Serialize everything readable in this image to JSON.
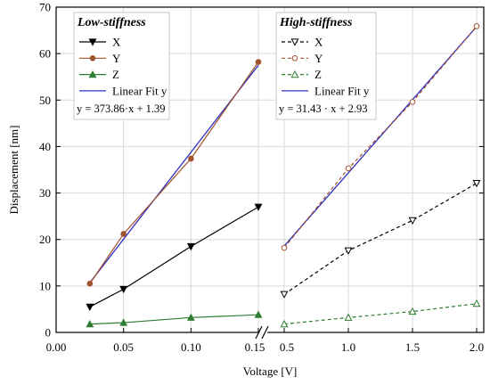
{
  "chart_data": {
    "type": "line",
    "ylabel": "Displacement [nm]",
    "xlabel": "Voltage [V]",
    "ylim": [
      0,
      70
    ],
    "yticks": [
      "0",
      "10",
      "20",
      "30",
      "40",
      "50",
      "60",
      "70"
    ],
    "yticks_values": [
      0,
      10,
      20,
      30,
      40,
      50,
      60,
      70
    ],
    "panels": [
      {
        "title": "Low-stiffness",
        "xlim": [
          0.0,
          0.15
        ],
        "xticks": [
          "0.00",
          "0.05",
          "0.10",
          "0.15"
        ],
        "xticks_values": [
          0.0,
          0.05,
          0.1,
          0.15
        ],
        "x": [
          0.025,
          0.05,
          0.1,
          0.15
        ],
        "series": [
          {
            "name": "X",
            "values": [
              5.5,
              9.3,
              18.5,
              27.0
            ],
            "color": "#000000",
            "marker": "triangle-down",
            "dash": "solid"
          },
          {
            "name": "Y",
            "values": [
              10.5,
              21.2,
              37.4,
              58.2
            ],
            "color": "#a0522d",
            "marker": "circle",
            "dash": "solid"
          },
          {
            "name": "Z",
            "values": [
              1.8,
              2.1,
              3.2,
              3.8
            ],
            "color": "#2e7d32",
            "marker": "triangle-up",
            "dash": "solid"
          }
        ],
        "fit": {
          "name": "Linear Fit y",
          "color": "#3030c0",
          "x": [
            0.025,
            0.15
          ],
          "y": [
            10.7,
            57.5
          ]
        },
        "equation": "y = 373.86·x + 1.39"
      },
      {
        "title": "High-stiffness",
        "xlim": [
          0.5,
          2.0
        ],
        "xticks": [
          "0.5",
          "1.0",
          "1.5",
          "2.0"
        ],
        "xticks_values": [
          0.5,
          1.0,
          1.5,
          2.0
        ],
        "x": [
          0.5,
          1.0,
          1.5,
          2.0
        ],
        "series": [
          {
            "name": "X",
            "values": [
              8.2,
              17.6,
              24.1,
              32.1
            ],
            "color": "#000000",
            "marker": "triangle-down-open",
            "dash": "dashed"
          },
          {
            "name": "Y",
            "values": [
              18.2,
              35.3,
              49.6,
              65.9
            ],
            "color": "#a0522d",
            "marker": "circle-open",
            "dash": "dashed"
          },
          {
            "name": "Z",
            "values": [
              1.8,
              3.2,
              4.5,
              6.2
            ],
            "color": "#2e7d32",
            "marker": "triangle-up-open",
            "dash": "dashed"
          }
        ],
        "fit": {
          "name": "Linear Fit y",
          "color": "#3030c0",
          "x": [
            0.5,
            2.0
          ],
          "y": [
            18.6,
            65.8
          ]
        },
        "equation": "y = 31.43 · x + 2.93"
      }
    ]
  }
}
